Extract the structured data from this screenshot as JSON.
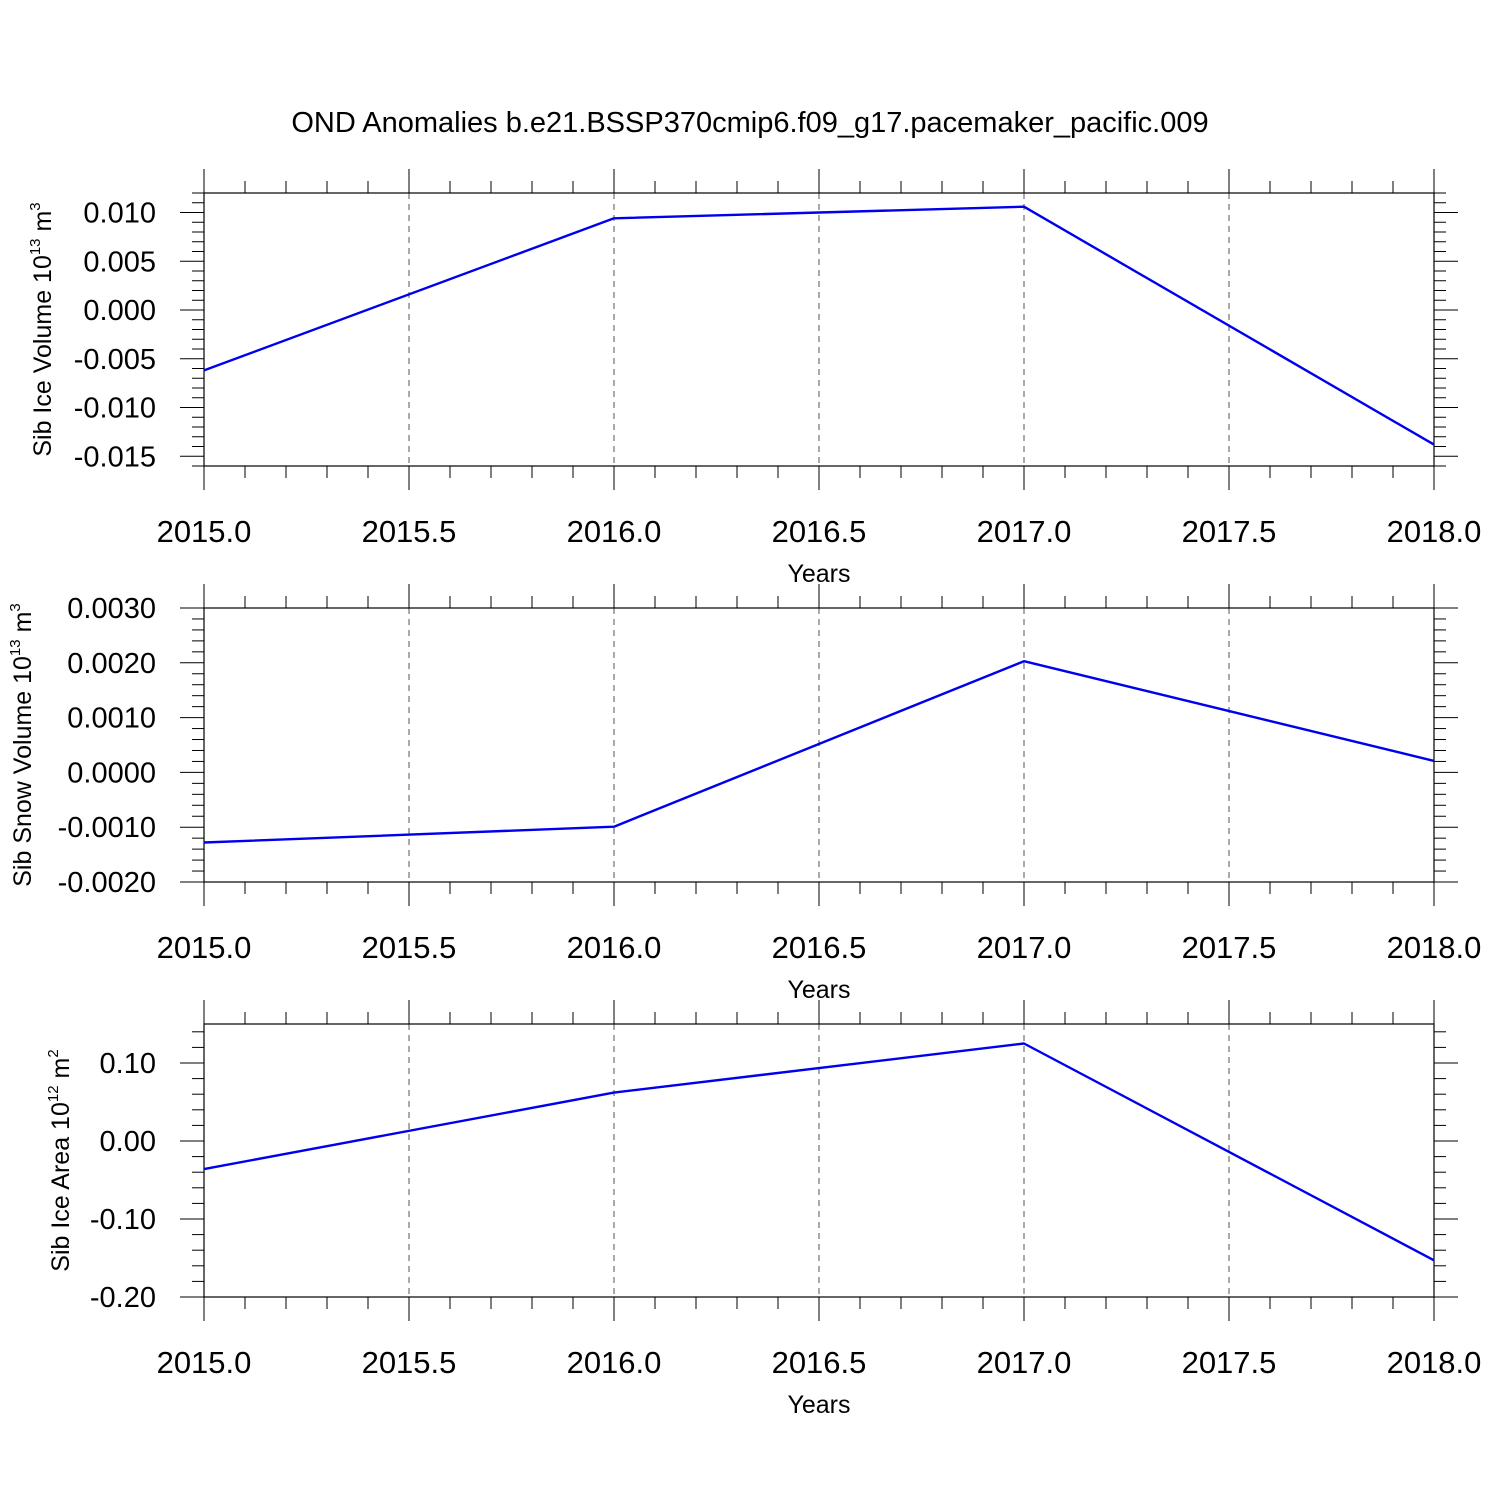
{
  "title": "OND Anomalies b.e21.BSSP370cmip6.f09_g17.pacemaker_pacific.009",
  "chart_data": [
    {
      "type": "line",
      "title": "",
      "xlabel": "Years",
      "ylabel": "Sib Ice Volume 10",
      "ylabel_exp": "13",
      "ylabel_unit": " m",
      "ylabel_unit_exp": "3",
      "xlim": [
        2015.0,
        2018.0
      ],
      "ylim": [
        -0.016,
        0.012
      ],
      "xticks": [
        2015.0,
        2015.5,
        2016.0,
        2016.5,
        2017.0,
        2017.5,
        2018.0
      ],
      "xtick_labels": [
        "2015.0",
        "2015.5",
        "2016.0",
        "2016.5",
        "2017.0",
        "2017.5",
        "2018.0"
      ],
      "yticks": [
        0.01,
        0.005,
        0.0,
        -0.005,
        -0.01,
        -0.015
      ],
      "ytick_labels": [
        "0.010",
        "0.005",
        "0.000",
        "-0.005",
        "-0.010",
        "-0.015"
      ],
      "grid": "vertical dashed",
      "line_color": "#0000ee",
      "series": [
        {
          "x": [
            2015,
            2016,
            2017,
            2018
          ],
          "y": [
            -0.0062,
            0.0094,
            0.0106,
            -0.0138
          ]
        }
      ]
    },
    {
      "type": "line",
      "title": "",
      "xlabel": "Years",
      "ylabel": "Sib Snow Volume 10",
      "ylabel_exp": "13",
      "ylabel_unit": " m",
      "ylabel_unit_exp": "3",
      "xlim": [
        2015.0,
        2018.0
      ],
      "ylim": [
        -0.002,
        0.003
      ],
      "xticks": [
        2015.0,
        2015.5,
        2016.0,
        2016.5,
        2017.0,
        2017.5,
        2018.0
      ],
      "xtick_labels": [
        "2015.0",
        "2015.5",
        "2016.0",
        "2016.5",
        "2017.0",
        "2017.5",
        "2018.0"
      ],
      "yticks": [
        0.003,
        0.002,
        0.001,
        0.0,
        -0.001,
        -0.002
      ],
      "ytick_labels": [
        "0.0030",
        "0.0020",
        "0.0010",
        "0.0000",
        "-0.0010",
        "-0.0020"
      ],
      "grid": "vertical dashed",
      "line_color": "#0000ee",
      "series": [
        {
          "x": [
            2015,
            2016,
            2017,
            2018
          ],
          "y": [
            -0.00128,
            -0.00099,
            0.00203,
            0.00021
          ]
        }
      ]
    },
    {
      "type": "line",
      "title": "",
      "xlabel": "Years",
      "ylabel": "Sib Ice Area 10",
      "ylabel_exp": "12",
      "ylabel_unit": " m",
      "ylabel_unit_exp": "2",
      "xlim": [
        2015.0,
        2018.0
      ],
      "ylim": [
        -0.2,
        0.15
      ],
      "xticks": [
        2015.0,
        2015.5,
        2016.0,
        2016.5,
        2017.0,
        2017.5,
        2018.0
      ],
      "xtick_labels": [
        "2015.0",
        "2015.5",
        "2016.0",
        "2016.5",
        "2017.0",
        "2017.5",
        "2018.0"
      ],
      "yticks": [
        0.1,
        0.0,
        -0.1,
        -0.2
      ],
      "ytick_labels": [
        "0.10",
        "0.00",
        "-0.10",
        "-0.20"
      ],
      "grid": "vertical dashed",
      "line_color": "#0000ee",
      "series": [
        {
          "x": [
            2015,
            2016,
            2017,
            2018
          ],
          "y": [
            -0.036,
            0.062,
            0.125,
            -0.153
          ]
        }
      ]
    }
  ]
}
